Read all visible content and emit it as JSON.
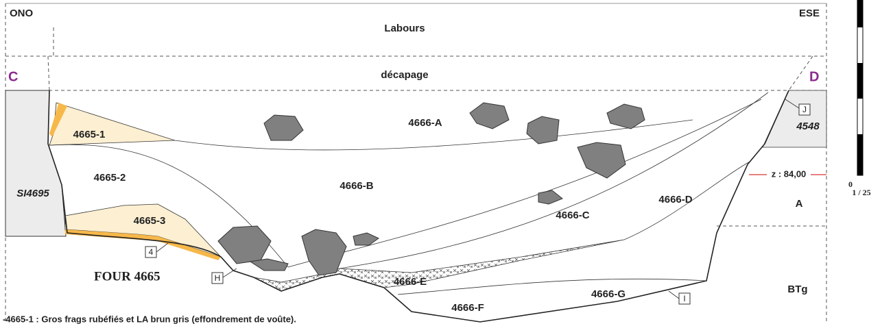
{
  "header": {
    "left": "ONO",
    "right": "ESE",
    "top_layer": "Labours",
    "strip_layer": "décapage",
    "left_point": "C",
    "right_point": "D"
  },
  "units": {
    "u4665_1": "4665-1",
    "u4665_2": "4665-2",
    "u4665_3": "4665-3",
    "si4695": "SI4695",
    "u4666_a": "4666-A",
    "u4666_b": "4666-B",
    "u4666_c": "4666-C",
    "u4666_d": "4666-D",
    "u4666_e": "4666-E",
    "u4666_f": "4666-F",
    "u4666_g": "4666-G",
    "u4548": "4548",
    "natural_a": "A",
    "natural_btg": "BTg"
  },
  "markers": {
    "m4": "4",
    "mH": "H",
    "mI": "I",
    "mJ": "J"
  },
  "structure": "FOUR 4665",
  "altitude": "z : 84,00",
  "scale": {
    "zero": "0",
    "ratio": "1 / 25"
  },
  "caption": "-4665-1 : Gros frags rubéfiés et LA brun gris (effondrement de voûte)."
}
